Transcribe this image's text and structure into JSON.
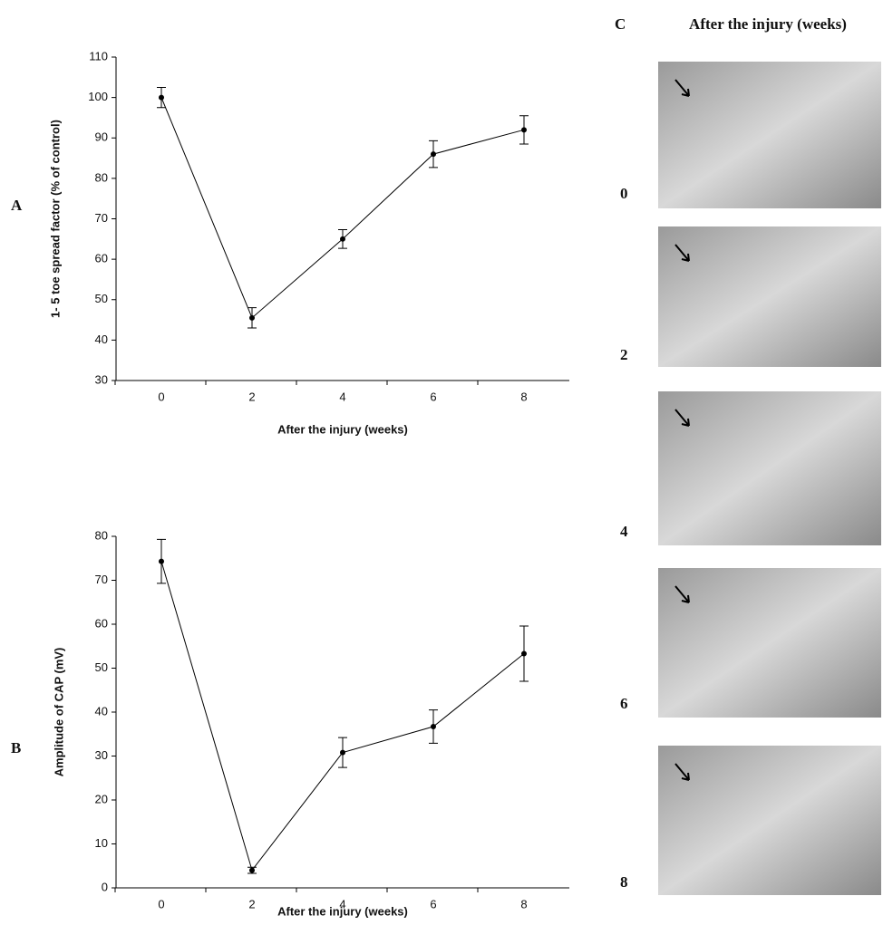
{
  "chart_data": [
    {
      "type": "line",
      "panel": "A",
      "xlabel": "After the injury (weeks)",
      "ylabel": "1- 5 toe spread factor (% of control)",
      "x": [
        0,
        2,
        4,
        6,
        8
      ],
      "values": [
        100,
        45.5,
        65,
        86,
        92
      ],
      "errors": [
        2.5,
        2.5,
        2.3,
        3.3,
        3.5
      ],
      "color": "#000000",
      "xlim": [
        -1,
        9
      ],
      "xticks": [
        0,
        2,
        4,
        6,
        8
      ],
      "ylim": [
        30,
        110
      ],
      "yticks": [
        30,
        40,
        50,
        60,
        70,
        80,
        90,
        100,
        110
      ]
    },
    {
      "type": "line",
      "panel": "B",
      "xlabel": "After the injury (weeks)",
      "ylabel": "Amplitude of CAP (mV)",
      "x": [
        0,
        2,
        4,
        6,
        8
      ],
      "values": [
        74.3,
        4,
        30.8,
        36.7,
        53.3
      ],
      "errors": [
        5,
        0.7,
        3.4,
        3.8,
        6.3
      ],
      "color": "#000000",
      "xlim": [
        -1,
        9
      ],
      "xticks": [
        0,
        2,
        4,
        6,
        8
      ],
      "ylim": [
        0,
        80
      ],
      "yticks": [
        0,
        10,
        20,
        30,
        40,
        50,
        60,
        70,
        80
      ]
    }
  ],
  "panel_c": {
    "label": "C",
    "title": "After the injury (weeks)",
    "photos": [
      "0",
      "2",
      "4",
      "6",
      "8"
    ]
  }
}
